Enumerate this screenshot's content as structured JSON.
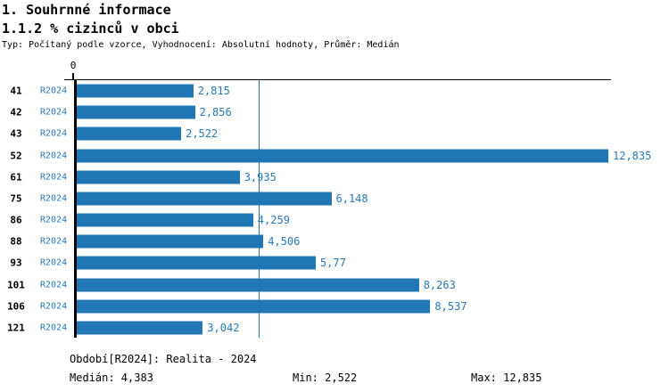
{
  "header": {
    "title1": "1. Souhrnné informace",
    "title2": "1.1.2 % cizinců v obci",
    "subtitle": "Typ: Počítaný podle vzorce, Vyhodnocení: Absolutní hodnoty, Průměr: Medián"
  },
  "chart_data": {
    "type": "bar",
    "orientation": "horizontal",
    "title": "1.1.2 % cizinců v obci",
    "axis_zero_label": "0",
    "period_label": "R2024",
    "categories": [
      "41",
      "42",
      "43",
      "52",
      "61",
      "75",
      "86",
      "88",
      "93",
      "101",
      "106",
      "121"
    ],
    "values": [
      2.815,
      2.856,
      2.522,
      12.835,
      3.935,
      6.148,
      4.259,
      4.506,
      5.77,
      8.263,
      8.537,
      3.042
    ],
    "value_labels": [
      "2,815",
      "2,856",
      "2,522",
      "12,835",
      "3,935",
      "6,148",
      "4,259",
      "4,506",
      "5,77",
      "8,263",
      "8,537",
      "3,042"
    ],
    "xlim": [
      0,
      12.835
    ],
    "median": 4.383,
    "grid": false,
    "legend_position": "none",
    "bar_color": "#2077b4",
    "median_line_color": "#2077b4",
    "label_color": "#2878b9"
  },
  "footer": {
    "period_note": "Období[R2024]: Realita - 2024",
    "median_label": "Medián: 4,383",
    "min_label": "Min: 2,522",
    "max_label": "Max: 12,835"
  }
}
